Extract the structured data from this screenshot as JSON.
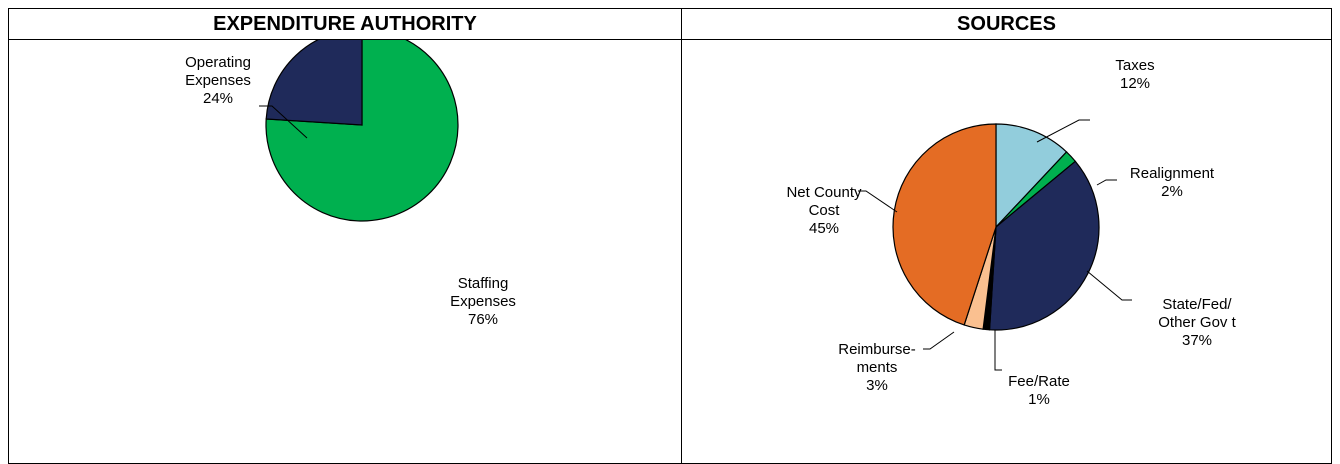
{
  "chart_data": [
    {
      "type": "pie",
      "title": "EXPENDITURE AUTHORITY",
      "slices": [
        {
          "label": [
            "Staffing",
            "Expenses",
            "76%"
          ],
          "value": 76,
          "color": "#00b04f"
        },
        {
          "label": [
            "Operating",
            "Expenses",
            "24%"
          ],
          "value": 24,
          "color": "#1f2a5a"
        }
      ],
      "start_angle_deg": 0,
      "direction": "clockwise"
    },
    {
      "type": "pie",
      "title": "SOURCES",
      "slices": [
        {
          "label": [
            "Taxes",
            "12%"
          ],
          "value": 12,
          "color": "#92cddc"
        },
        {
          "label": [
            "Realignment",
            "2%"
          ],
          "value": 2,
          "color": "#00b04f"
        },
        {
          "label": [
            "State/Fed/",
            "Other Gov t",
            "37%"
          ],
          "value": 37,
          "color": "#1f2a5a"
        },
        {
          "label": [
            "Fee/Rate",
            "1%"
          ],
          "value": 1,
          "color": "#000000"
        },
        {
          "label": [
            "Reimburse-",
            "ments",
            "3%"
          ],
          "value": 3,
          "color": "#fac090"
        },
        {
          "label": [
            "Net County",
            "Cost",
            "45%"
          ],
          "value": 45,
          "color": "#e46c24"
        }
      ],
      "start_angle_deg": 0,
      "direction": "clockwise"
    }
  ]
}
